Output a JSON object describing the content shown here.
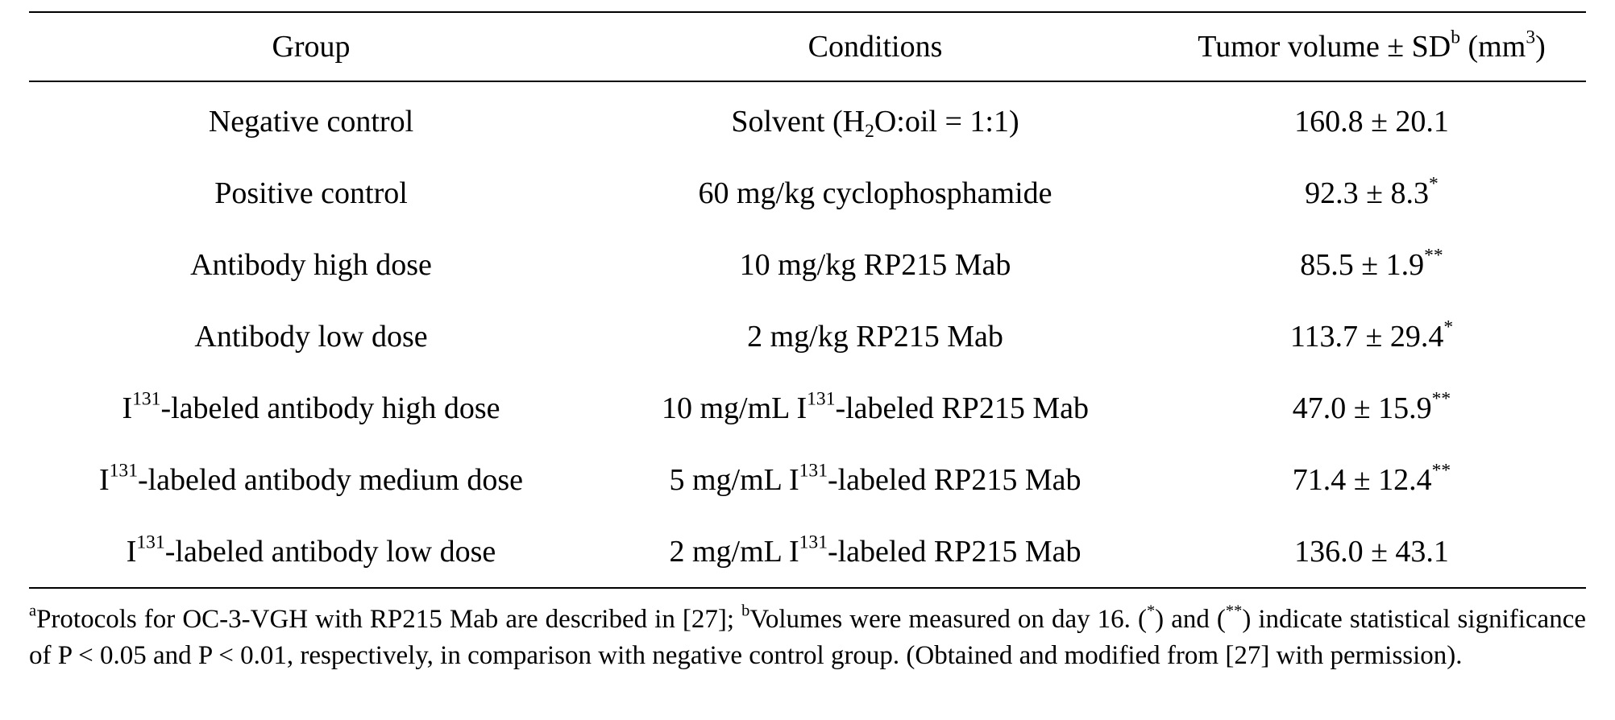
{
  "table": {
    "headers": {
      "group": "Group",
      "conditions": "Conditions",
      "tumor_volume": "Tumor volume ± SD",
      "tumor_volume_sup": "b",
      "unit_open": " (mm",
      "unit_sup": "3",
      "unit_close": ")"
    },
    "rows": [
      {
        "group": {
          "pre": "Negative control",
          "sup": "",
          "post": ""
        },
        "conditions": {
          "pre": "Solvent (H",
          "sub": "2",
          "post": "O:oil = 1:1)"
        },
        "volume": {
          "value": "160.8 ± 20.1",
          "sig": ""
        }
      },
      {
        "group": {
          "pre": "Positive control",
          "sup": "",
          "post": ""
        },
        "conditions": {
          "pre": "60 mg/kg cyclophosphamide",
          "sub": "",
          "post": ""
        },
        "volume": {
          "value": "92.3 ± 8.3",
          "sig": "*"
        }
      },
      {
        "group": {
          "pre": "Antibody high dose",
          "sup": "",
          "post": ""
        },
        "conditions": {
          "pre": "10 mg/kg RP215 Mab",
          "sub": "",
          "post": ""
        },
        "volume": {
          "value": "85.5 ± 1.9",
          "sig": "**"
        }
      },
      {
        "group": {
          "pre": "Antibody low dose",
          "sup": "",
          "post": ""
        },
        "conditions": {
          "pre": "2 mg/kg RP215 Mab",
          "sub": "",
          "post": ""
        },
        "volume": {
          "value": "113.7 ± 29.4",
          "sig": "*"
        }
      },
      {
        "group": {
          "pre": "I",
          "sup": "131",
          "post": "-labeled antibody high dose"
        },
        "conditions": {
          "pre": "10 mg/mL I",
          "sup": "131",
          "post": "-labeled RP215 Mab"
        },
        "volume": {
          "value": "47.0 ± 15.9",
          "sig": "**"
        }
      },
      {
        "group": {
          "pre": "I",
          "sup": "131",
          "post": "-labeled antibody medium dose"
        },
        "conditions": {
          "pre": "5 mg/mL I",
          "sup": "131",
          "post": "-labeled RP215 Mab"
        },
        "volume": {
          "value": "71.4 ± 12.4",
          "sig": "**"
        }
      },
      {
        "group": {
          "pre": "I",
          "sup": "131",
          "post": "-labeled antibody low dose"
        },
        "conditions": {
          "pre": "2 mg/mL I",
          "sup": "131",
          "post": "-labeled RP215 Mab"
        },
        "volume": {
          "value": "136.0 ± 43.1",
          "sig": ""
        }
      }
    ]
  },
  "footnote": {
    "a_mark": "a",
    "a_text": "Protocols for OC-3-VGH with RP215 Mab are described in [27]; ",
    "b_mark": "b",
    "b_text": "Volumes were measured on day 16. (",
    "star1": "*",
    "mid_text": ") and (",
    "star2": "**",
    "end_text": ") indicate statistical significance of P < 0.05 and P < 0.01, respectively, in comparison with negative control group. (Obtained and modified from [27] with permission)."
  }
}
